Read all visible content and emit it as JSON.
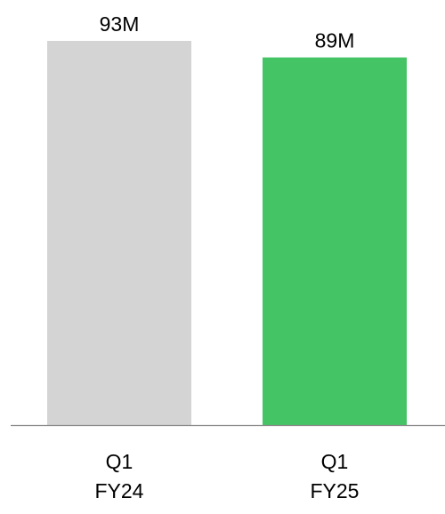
{
  "chart_data": {
    "type": "bar",
    "categories": [
      [
        "Q1",
        "FY24"
      ],
      [
        "Q1",
        "FY25"
      ]
    ],
    "values": [
      93,
      89
    ],
    "value_labels": [
      "93M",
      "89M"
    ],
    "unit": "M",
    "bar_colors": [
      "#d4d4d4",
      "#45c465"
    ],
    "axis_color": "#8a8a8a",
    "ylim": [
      0,
      93
    ],
    "grid": false,
    "title": "",
    "xlabel": "",
    "ylabel": ""
  }
}
